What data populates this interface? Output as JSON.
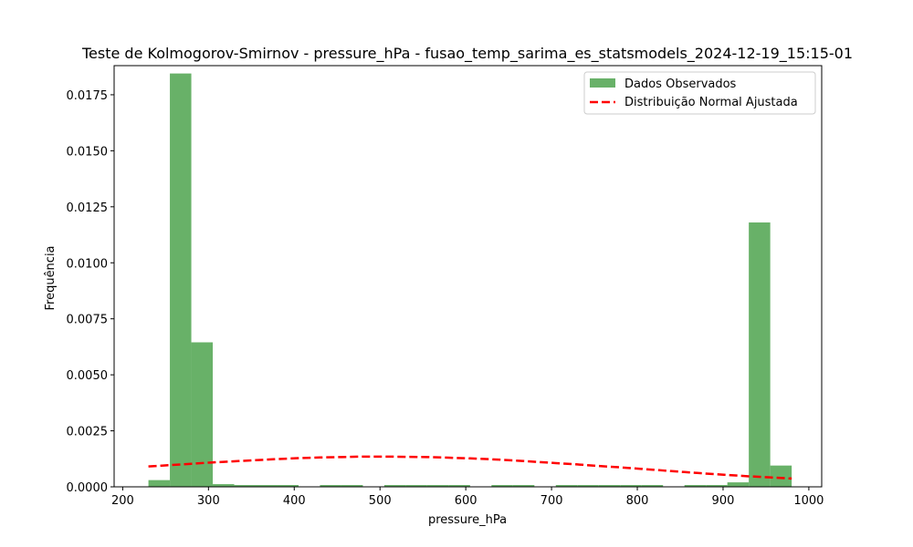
{
  "chart_data": {
    "type": "bar",
    "title": "Teste de Kolmogorov-Smirnov - pressure_hPa - fusao_temp_sarima_es_statsmodels_2024-12-19_15:15-01",
    "xlabel": "pressure_hPa",
    "ylabel": "Frequência",
    "xlim": [
      190,
      1015
    ],
    "ylim": [
      0,
      0.0188
    ],
    "x_ticks": [
      200,
      300,
      400,
      500,
      600,
      700,
      800,
      900,
      1000
    ],
    "y_ticks": [
      0.0,
      0.0025,
      0.005,
      0.0075,
      0.01,
      0.0125,
      0.015,
      0.0175
    ],
    "x_tick_labels": [
      "200",
      "300",
      "400",
      "500",
      "600",
      "700",
      "800",
      "900",
      "1000"
    ],
    "y_tick_labels": [
      "0.0000",
      "0.0025",
      "0.0050",
      "0.0075",
      "0.0100",
      "0.0125",
      "0.0150",
      "0.0175"
    ],
    "legend_position": "top-right",
    "colors": {
      "histogram": "#68b168",
      "normal_curve": "#ff0000"
    },
    "series": [
      {
        "name": "Dados Observados",
        "kind": "histogram",
        "bin_edges": [
          230,
          255,
          280,
          305,
          330,
          355,
          380,
          405,
          430,
          455,
          480,
          505,
          530,
          555,
          580,
          605,
          630,
          655,
          680,
          705,
          730,
          755,
          780,
          805,
          830,
          855,
          880,
          905,
          930,
          955,
          980
        ],
        "values": [
          0.0003,
          0.01845,
          0.00645,
          0.00012,
          8e-05,
          8e-05,
          8e-05,
          0.0,
          8e-05,
          8e-05,
          0.0,
          8e-05,
          8e-05,
          8e-05,
          8e-05,
          0.0,
          8e-05,
          8e-05,
          0.0,
          8e-05,
          8e-05,
          8e-05,
          8e-05,
          8e-05,
          0.0,
          8e-05,
          8e-05,
          0.0002,
          0.0118,
          0.00095
        ]
      },
      {
        "name": "Distribuição Normal Ajustada",
        "kind": "line",
        "style": "dashed",
        "x": [
          230,
          255,
          280,
          305,
          330,
          355,
          380,
          405,
          430,
          455,
          480,
          505,
          530,
          555,
          580,
          605,
          630,
          655,
          680,
          705,
          730,
          755,
          780,
          805,
          830,
          855,
          880,
          905,
          930,
          955,
          980
        ],
        "y": [
          0.00091,
          0.00097,
          0.00103,
          0.00109,
          0.00114,
          0.00119,
          0.00124,
          0.00128,
          0.00131,
          0.00133,
          0.00135,
          0.00135,
          0.00134,
          0.00133,
          0.0013,
          0.00127,
          0.00123,
          0.00118,
          0.00112,
          0.00106,
          0.001,
          0.00093,
          0.00087,
          0.0008,
          0.00073,
          0.00066,
          0.00059,
          0.00053,
          0.00047,
          0.00042,
          0.00037
        ]
      }
    ]
  }
}
